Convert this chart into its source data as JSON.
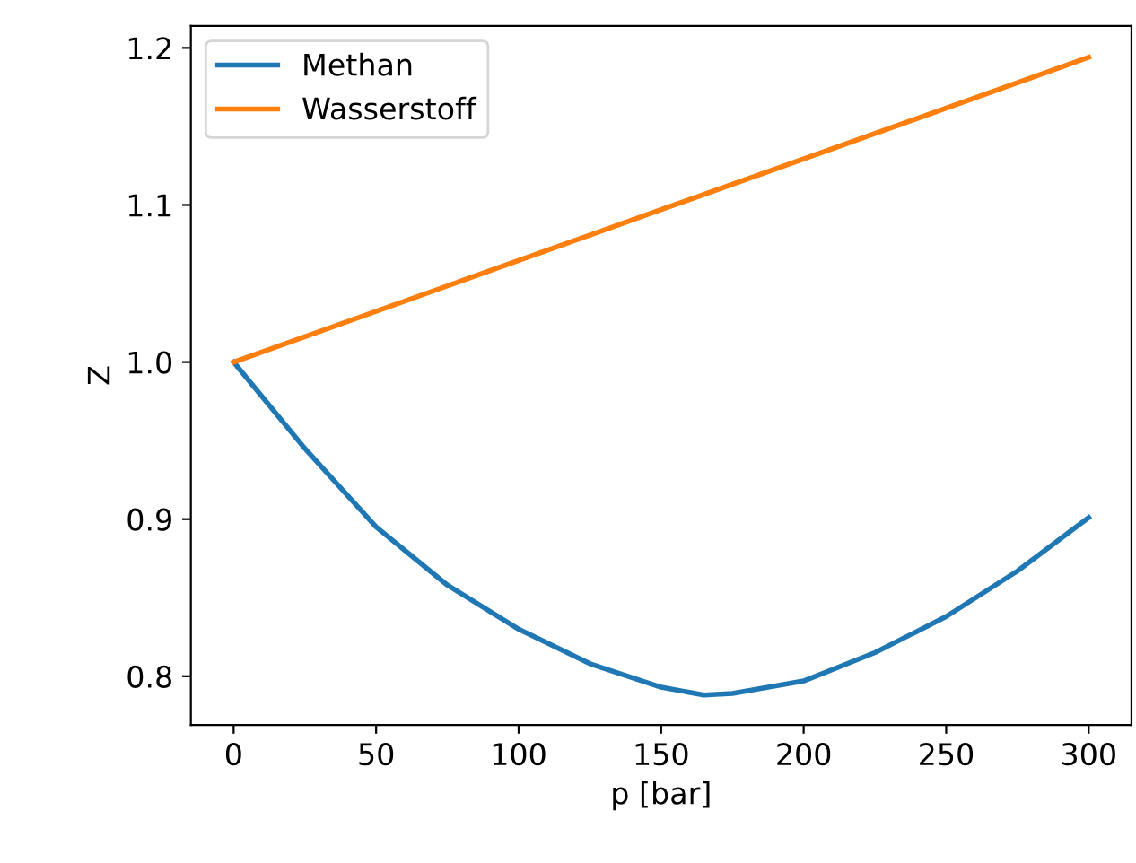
{
  "chart_data": {
    "type": "line",
    "xlabel": "p [bar]",
    "ylabel": "Z",
    "xlim": [
      -15,
      315
    ],
    "xticks": [
      0,
      50,
      100,
      150,
      200,
      250,
      300
    ],
    "ylim": [
      0.769,
      1.214
    ],
    "yticks": [
      {
        "value": 0.8,
        "label": "0.8"
      },
      {
        "value": 0.9,
        "label": "0.9"
      },
      {
        "value": 1.0,
        "label": "1.0"
      },
      {
        "value": 1.1,
        "label": "1.1"
      },
      {
        "value": 1.2,
        "label": "1.2"
      }
    ],
    "series": [
      {
        "name": "Methan",
        "color": "#1f77b4",
        "x": [
          0,
          25,
          50,
          75,
          100,
          125,
          150,
          165,
          175,
          200,
          225,
          250,
          275,
          300
        ],
        "values": [
          1.0,
          0.945,
          0.895,
          0.858,
          0.83,
          0.808,
          0.793,
          0.788,
          0.789,
          0.797,
          0.815,
          0.838,
          0.867,
          0.901
        ]
      },
      {
        "name": "Wasserstoff",
        "color": "#ff7f0e",
        "x": [
          0,
          150,
          300
        ],
        "values": [
          1.0,
          1.097,
          1.194
        ]
      }
    ],
    "legend": "top left",
    "grid": false,
    "marker": "none",
    "line_style": "solid"
  }
}
